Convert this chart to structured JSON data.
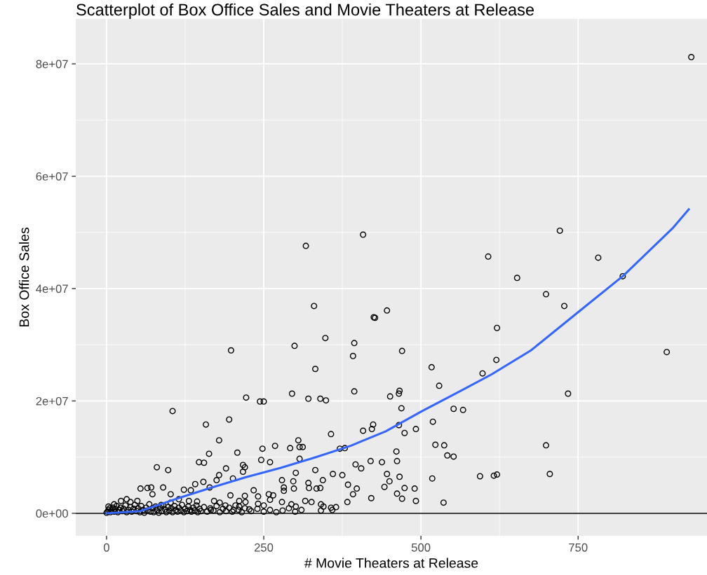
{
  "chart_data": {
    "type": "scatter",
    "title": "Scatterplot of Box Office Sales and Movie Theaters at Release",
    "xlabel": "# Movie Theaters at Release",
    "ylabel": "Box Office Sales",
    "xlim": [
      -49,
      955
    ],
    "ylim": [
      -4000000,
      88000000
    ],
    "xticks": [
      0,
      250,
      500,
      750
    ],
    "yticks": [
      {
        "value": 0,
        "label": "0e+00"
      },
      {
        "value": 20000000,
        "label": "2e+07"
      },
      {
        "value": 40000000,
        "label": "4e+07"
      },
      {
        "value": 60000000,
        "label": "6e+07"
      },
      {
        "value": 80000000,
        "label": "8e+07"
      }
    ],
    "grid": true,
    "legend": false,
    "marker": "circle",
    "ref_lines": [
      {
        "axis": "y",
        "value": 0,
        "color": "#000000"
      }
    ],
    "series": [
      {
        "color": "#000000",
        "x": [
          930,
          891,
          782,
          821,
          721,
          728,
          699,
          653,
          607,
          621,
          620,
          598,
          517,
          529,
          734,
          699,
          705,
          594,
          616,
          621,
          518,
          519,
          523,
          537,
          542,
          552,
          536,
          552,
          567,
          461,
          317,
          408,
          330,
          446,
          425,
          427,
          348,
          299,
          394,
          392,
          470,
          332,
          295,
          321,
          340,
          349,
          394,
          451,
          465,
          466,
          469,
          357,
          408,
          422,
          424,
          465,
          474,
          492,
          305,
          292,
          307,
          312,
          307,
          371,
          379,
          396,
          405,
          420,
          438,
          462,
          332,
          301,
          360,
          375,
          446,
          466,
          279,
          297,
          344,
          450,
          384,
          321,
          282,
          298,
          322,
          334,
          340,
          398,
          442,
          474,
          490,
          282,
          392,
          462,
          421,
          470,
          492,
          383,
          316,
          326,
          294,
          301,
          341,
          345,
          357,
          365,
          341,
          359,
          198,
          105,
          222,
          244,
          250,
          158,
          195,
          179,
          163,
          208,
          147,
          155,
          248,
          268,
          246,
          260,
          80,
          98,
          190,
          217,
          220,
          217,
          201,
          179,
          175,
          164,
          154,
          141,
          123,
          134,
          90,
          54,
          65,
          71,
          102,
          73,
          234,
          197,
          241,
          258,
          265,
          260,
          279,
          250,
          241,
          220,
          221,
          211,
          211,
          227,
          189,
          180,
          171,
          144,
          131,
          202,
          166,
          115,
          102,
          87,
          23,
          32,
          38,
          49,
          12,
          3,
          0,
          2,
          3,
          5,
          6,
          8,
          10,
          12,
          14,
          16,
          18,
          20,
          22,
          25,
          27,
          30,
          32,
          35,
          38,
          40,
          43,
          45,
          48,
          50,
          53,
          55,
          58,
          60,
          63,
          65,
          68,
          70,
          73,
          75,
          78,
          80,
          83,
          85,
          88,
          90,
          93,
          95,
          98,
          100,
          103,
          105,
          108,
          110,
          113,
          115,
          118,
          120,
          123,
          125,
          128,
          130,
          133,
          135,
          138,
          140,
          143,
          145,
          148,
          150,
          155,
          160,
          165,
          170,
          175,
          180,
          185,
          190,
          195,
          200,
          205,
          210,
          215,
          220,
          230,
          240,
          250,
          260,
          270,
          280,
          290,
          300,
          310
        ],
        "values": [
          81200000.0,
          28700000.0,
          45500000.0,
          42200000.0,
          50300000.0,
          36900000.0,
          39000000.0,
          41900000.0,
          45700000.0,
          33000000.0,
          27300000.0,
          24900000.0,
          26000000.0,
          22700000.0,
          21300000.0,
          12100000.0,
          7000000.0,
          6600000.0,
          6700000.0,
          6900000.0,
          6200000.0,
          16300000.0,
          12200000.0,
          12100000.0,
          10300000.0,
          10100000.0,
          1900000.0,
          18600000.0,
          18400000.0,
          11000000.0,
          47600000.0,
          49600000.0,
          36900000.0,
          36100000.0,
          34900000.0,
          34800000.0,
          31200000.0,
          29800000.0,
          30300000.0,
          28000000.0,
          28900000.0,
          25700000.0,
          21300000.0,
          20400000.0,
          20400000.0,
          20100000.0,
          21700000.0,
          20800000.0,
          21300000.0,
          21800000.0,
          18700000.0,
          14100000.0,
          14700000.0,
          15000000.0,
          15800000.0,
          15700000.0,
          14300000.0,
          15000000.0,
          13000000.0,
          11600000.0,
          11800000.0,
          11800000.0,
          9700000.0,
          11500000.0,
          11600000.0,
          8700000.0,
          8000000.0,
          9300000.0,
          9100000.0,
          9300000.0,
          7700000.0,
          7200000.0,
          7000000.0,
          6800000.0,
          7000000.0,
          6500000.0,
          5900000.0,
          5700000.0,
          5900000.0,
          5700000.0,
          5100000.0,
          5400000.0,
          4600000.0,
          4400000.0,
          4500000.0,
          4400000.0,
          4500000.0,
          4400000.0,
          4700000.0,
          4500000.0,
          4400000.0,
          4000000.0,
          3400000.0,
          3500000.0,
          2700000.0,
          2600000.0,
          2200000.0,
          2000000.0,
          2200000.0,
          2000000.0,
          1600000.0,
          1200000.0,
          1600000.0,
          1200000.0,
          1000000.0,
          1100000.0,
          500000.0,
          600000.0,
          29000000.0,
          18200000.0,
          20600000.0,
          19900000.0,
          19900000.0,
          15800000.0,
          16700000.0,
          13000000.0,
          10600000.0,
          10800000.0,
          9100000.0,
          9000000.0,
          11500000.0,
          12000000.0,
          9500000.0,
          9100000.0,
          8200000.0,
          7700000.0,
          8000000.0,
          8600000.0,
          8200000.0,
          7400000.0,
          6200000.0,
          6800000.0,
          5900000.0,
          4600000.0,
          5600000.0,
          5200000.0,
          4200000.0,
          4100000.0,
          4600000.0,
          4400000.0,
          4500000.0,
          4600000.0,
          3400000.0,
          3400000.0,
          4100000.0,
          3200000.0,
          3000000.0,
          3400000.0,
          3200000.0,
          2400000.0,
          2000000.0,
          1400000.0,
          1700000.0,
          3100000.0,
          2000000.0,
          2200000.0,
          1200000.0,
          700000.0,
          1400000.0,
          1900000.0,
          2200000.0,
          2100000.0,
          2200000.0,
          600000.0,
          600000.0,
          2500000.0,
          1900000.0,
          1500000.0,
          2200000.0,
          2500000.0,
          2000000.0,
          2200000.0,
          1600000.0,
          1200000.0,
          100000.0,
          300000.0,
          600000.0,
          900000.0,
          200000.0,
          500000.0,
          1000000.0,
          300000.0,
          700000.0,
          1300000.0,
          200000.0,
          600000.0,
          1000000.0,
          400000.0,
          800000.0,
          1400000.0,
          200000.0,
          600000.0,
          1100000.0,
          300000.0,
          800000.0,
          1500000.0,
          400000.0,
          900000.0,
          200000.0,
          1300000.0,
          600000.0,
          100000.0,
          1000000.0,
          500000.0,
          1600000.0,
          300000.0,
          900000.0,
          200000.0,
          1200000.0,
          600000.0,
          100000.0,
          1000000.0,
          400000.0,
          1400000.0,
          700000.0,
          200000.0,
          1100000.0,
          500000.0,
          900000.0,
          200000.0,
          1300000.0,
          600000.0,
          300000.0,
          1000000.0,
          500000.0,
          1500000.0,
          200000.0,
          800000.0,
          400000.0,
          1200000.0,
          600000.0,
          300000.0,
          1000000.0,
          500000.0,
          1400000.0,
          200000.0,
          800000.0,
          400000.0,
          1100000.0,
          300000.0,
          900000.0,
          500000.0,
          1300000.0,
          200000.0,
          800000.0,
          400000.0,
          1000000.0,
          300000.0,
          1400000.0,
          600000.0,
          200000.0,
          900000.0,
          400000.0,
          800000.0,
          300000.0,
          600000.0,
          200000.0,
          500000.0,
          900000.0,
          300000.0,
          600000.0
        ]
      },
      {
        "type": "line",
        "color": "#3366ff",
        "marker": "none",
        "line_style": "solid",
        "x": [
          0,
          54,
          109,
          165,
          221,
          277,
          333,
          388,
          444,
          502,
          560,
          612,
          675,
          750,
          822,
          900,
          926
        ],
        "values": [
          0,
          400000.0,
          2500000.0,
          4500000.0,
          6400000.0,
          8100000.0,
          10000000.0,
          12000000.0,
          14600000.0,
          18200000.0,
          21600000.0,
          24700000.0,
          29000000.0,
          35800000.0,
          42300000.0,
          50700000.0,
          54100000.0
        ]
      }
    ]
  }
}
